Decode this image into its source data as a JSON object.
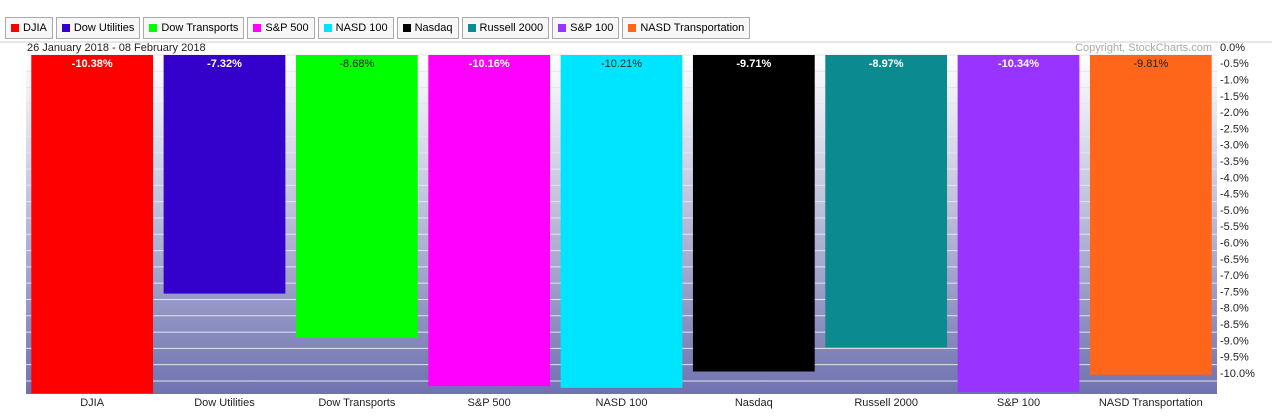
{
  "chart_data": {
    "type": "bar",
    "subtitle": "26 January 2018 - 08 February 2018",
    "annotation": "Copyright, StockCharts.com",
    "categories": [
      "DJIA",
      "Dow Utilities",
      "Dow Transports",
      "S&P 500",
      "NASD 100",
      "Nasdaq",
      "Russell 2000",
      "S&P 100",
      "NASD Transportation"
    ],
    "series": [
      {
        "name": "DJIA",
        "color": "#ff0000"
      },
      {
        "name": "Dow Utilities",
        "color": "#3300cc"
      },
      {
        "name": "Dow Transports",
        "color": "#00ff00"
      },
      {
        "name": "S&P 500",
        "color": "#ff00ff"
      },
      {
        "name": "NASD 100",
        "color": "#00e5ff"
      },
      {
        "name": "Nasdaq",
        "color": "#000000"
      },
      {
        "name": "Russell 2000",
        "color": "#0b8a8f"
      },
      {
        "name": "S&P 100",
        "color": "#9933ff"
      },
      {
        "name": "NASD Transportation",
        "color": "#ff6619"
      }
    ],
    "values": [
      -10.38,
      -7.32,
      -8.68,
      -10.16,
      -10.21,
      -9.71,
      -8.97,
      -10.34,
      -9.81
    ],
    "value_labels": [
      "-10.38%",
      "-7.32%",
      "-8.68%",
      "-10.16%",
      "-10.21%",
      "-9.71%",
      "-8.97%",
      "-10.34%",
      "-9.81%"
    ],
    "ylim": [
      -10.4,
      0
    ],
    "yticks": [
      {
        "value": 0,
        "label": "0.0%"
      },
      {
        "value": -0.5,
        "label": "-0.5%"
      },
      {
        "value": -1,
        "label": "-1.0%"
      },
      {
        "value": -1.5,
        "label": "-1.5%"
      },
      {
        "value": -2,
        "label": "-2.0%"
      },
      {
        "value": -2.5,
        "label": "-2.5%"
      },
      {
        "value": -3,
        "label": "-3.0%"
      },
      {
        "value": -3.5,
        "label": "-3.5%"
      },
      {
        "value": -4,
        "label": "-4.0%"
      },
      {
        "value": -4.5,
        "label": "-4.5%"
      },
      {
        "value": -5,
        "label": "-5.0%"
      },
      {
        "value": -5.5,
        "label": "-5.5%"
      },
      {
        "value": -6,
        "label": "-6.0%"
      },
      {
        "value": -6.5,
        "label": "-6.5%"
      },
      {
        "value": -7,
        "label": "-7.0%"
      },
      {
        "value": -7.5,
        "label": "-7.5%"
      },
      {
        "value": -8,
        "label": "-8.0%"
      },
      {
        "value": -8.5,
        "label": "-8.5%"
      },
      {
        "value": -9,
        "label": "-9.0%"
      },
      {
        "value": -9.5,
        "label": "-9.5%"
      },
      {
        "value": -10,
        "label": "-10.0%"
      }
    ],
    "grid": true
  }
}
